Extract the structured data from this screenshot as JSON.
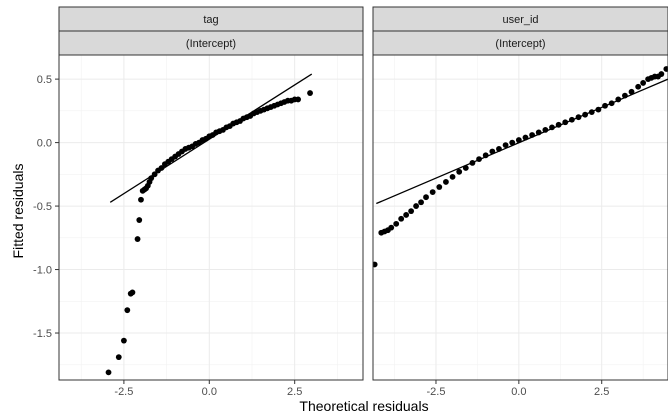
{
  "chart_data": {
    "type": "scatter",
    "xlabel": "Theoretical residuals",
    "ylabel": "Fitted residuals",
    "xlim": [
      -4.4,
      4.5
    ],
    "ylim": [
      -1.87,
      0.69
    ],
    "x_ticks": [
      {
        "value": -2.5,
        "label": "-2.5"
      },
      {
        "value": 0.0,
        "label": "0.0"
      },
      {
        "value": 2.5,
        "label": "2.5"
      }
    ],
    "y_ticks": [
      {
        "value": 0.5,
        "label": "0.5"
      },
      {
        "value": 0.0,
        "label": "0.0"
      },
      {
        "value": -0.5,
        "label": "-0.5"
      },
      {
        "value": -1.0,
        "label": "-1.0"
      },
      {
        "value": -1.5,
        "label": "-1.5"
      }
    ],
    "grid": true,
    "panels": [
      {
        "strip_top": "tag",
        "strip_bottom": "(Intercept)",
        "reference_line": [
          [
            -2.9,
            -0.47
          ],
          [
            3.0,
            0.54
          ]
        ],
        "points": [
          [
            -2.95,
            -1.81
          ],
          [
            -2.65,
            -1.69
          ],
          [
            -2.5,
            -1.56
          ],
          [
            -2.4,
            -1.32
          ],
          [
            -2.3,
            -1.19
          ],
          [
            -2.25,
            -1.18
          ],
          [
            -2.1,
            -0.76
          ],
          [
            -2.05,
            -0.61
          ],
          [
            -2.0,
            -0.45
          ],
          [
            -1.95,
            -0.38
          ],
          [
            -1.9,
            -0.37
          ],
          [
            -1.85,
            -0.36
          ],
          [
            -1.8,
            -0.34
          ],
          [
            -1.75,
            -0.31
          ],
          [
            -1.7,
            -0.28
          ],
          [
            -1.6,
            -0.25
          ],
          [
            -1.5,
            -0.22
          ],
          [
            -1.4,
            -0.2
          ],
          [
            -1.3,
            -0.17
          ],
          [
            -1.2,
            -0.15
          ],
          [
            -1.1,
            -0.13
          ],
          [
            -1.0,
            -0.11
          ],
          [
            -0.9,
            -0.09
          ],
          [
            -0.8,
            -0.07
          ],
          [
            -0.7,
            -0.05
          ],
          [
            -0.6,
            -0.04
          ],
          [
            -0.5,
            -0.03
          ],
          [
            -0.4,
            -0.01
          ],
          [
            -0.3,
            0.0
          ],
          [
            -0.2,
            0.02
          ],
          [
            -0.1,
            0.03
          ],
          [
            0.0,
            0.05
          ],
          [
            0.1,
            0.06
          ],
          [
            0.2,
            0.08
          ],
          [
            0.3,
            0.09
          ],
          [
            0.4,
            0.1
          ],
          [
            0.5,
            0.12
          ],
          [
            0.6,
            0.13
          ],
          [
            0.7,
            0.15
          ],
          [
            0.8,
            0.16
          ],
          [
            0.9,
            0.17
          ],
          [
            1.0,
            0.19
          ],
          [
            1.1,
            0.2
          ],
          [
            1.2,
            0.21
          ],
          [
            1.3,
            0.23
          ],
          [
            1.4,
            0.24
          ],
          [
            1.5,
            0.25
          ],
          [
            1.6,
            0.26
          ],
          [
            1.7,
            0.27
          ],
          [
            1.8,
            0.28
          ],
          [
            1.9,
            0.29
          ],
          [
            2.0,
            0.3
          ],
          [
            2.1,
            0.31
          ],
          [
            2.2,
            0.32
          ],
          [
            2.3,
            0.33
          ],
          [
            2.4,
            0.33
          ],
          [
            2.5,
            0.34
          ],
          [
            2.6,
            0.34
          ],
          [
            2.95,
            0.39
          ]
        ]
      },
      {
        "strip_top": "user_id",
        "strip_bottom": "(Intercept)",
        "reference_line": [
          [
            -4.3,
            -0.48
          ],
          [
            4.5,
            0.5
          ]
        ],
        "points": [
          [
            -4.35,
            -0.96
          ],
          [
            -4.15,
            -0.71
          ],
          [
            -4.05,
            -0.7
          ],
          [
            -3.95,
            -0.69
          ],
          [
            -3.85,
            -0.67
          ],
          [
            -3.7,
            -0.64
          ],
          [
            -3.55,
            -0.6
          ],
          [
            -3.4,
            -0.57
          ],
          [
            -3.25,
            -0.54
          ],
          [
            -3.1,
            -0.5
          ],
          [
            -2.95,
            -0.47
          ],
          [
            -2.8,
            -0.43
          ],
          [
            -2.6,
            -0.39
          ],
          [
            -2.4,
            -0.35
          ],
          [
            -2.2,
            -0.31
          ],
          [
            -2.0,
            -0.27
          ],
          [
            -1.8,
            -0.23
          ],
          [
            -1.6,
            -0.2
          ],
          [
            -1.4,
            -0.16
          ],
          [
            -1.2,
            -0.13
          ],
          [
            -1.0,
            -0.1
          ],
          [
            -0.8,
            -0.07
          ],
          [
            -0.6,
            -0.05
          ],
          [
            -0.4,
            -0.02
          ],
          [
            -0.2,
            0.0
          ],
          [
            0.0,
            0.02
          ],
          [
            0.2,
            0.04
          ],
          [
            0.4,
            0.06
          ],
          [
            0.6,
            0.08
          ],
          [
            0.8,
            0.1
          ],
          [
            1.0,
            0.12
          ],
          [
            1.2,
            0.14
          ],
          [
            1.4,
            0.16
          ],
          [
            1.6,
            0.18
          ],
          [
            1.8,
            0.2
          ],
          [
            2.0,
            0.22
          ],
          [
            2.2,
            0.24
          ],
          [
            2.4,
            0.26
          ],
          [
            2.6,
            0.29
          ],
          [
            2.8,
            0.31
          ],
          [
            3.0,
            0.34
          ],
          [
            3.2,
            0.37
          ],
          [
            3.4,
            0.4
          ],
          [
            3.6,
            0.44
          ],
          [
            3.75,
            0.47
          ],
          [
            3.9,
            0.5
          ],
          [
            4.0,
            0.51
          ],
          [
            4.1,
            0.52
          ],
          [
            4.2,
            0.52
          ],
          [
            4.3,
            0.54
          ],
          [
            4.45,
            0.58
          ]
        ]
      }
    ]
  }
}
